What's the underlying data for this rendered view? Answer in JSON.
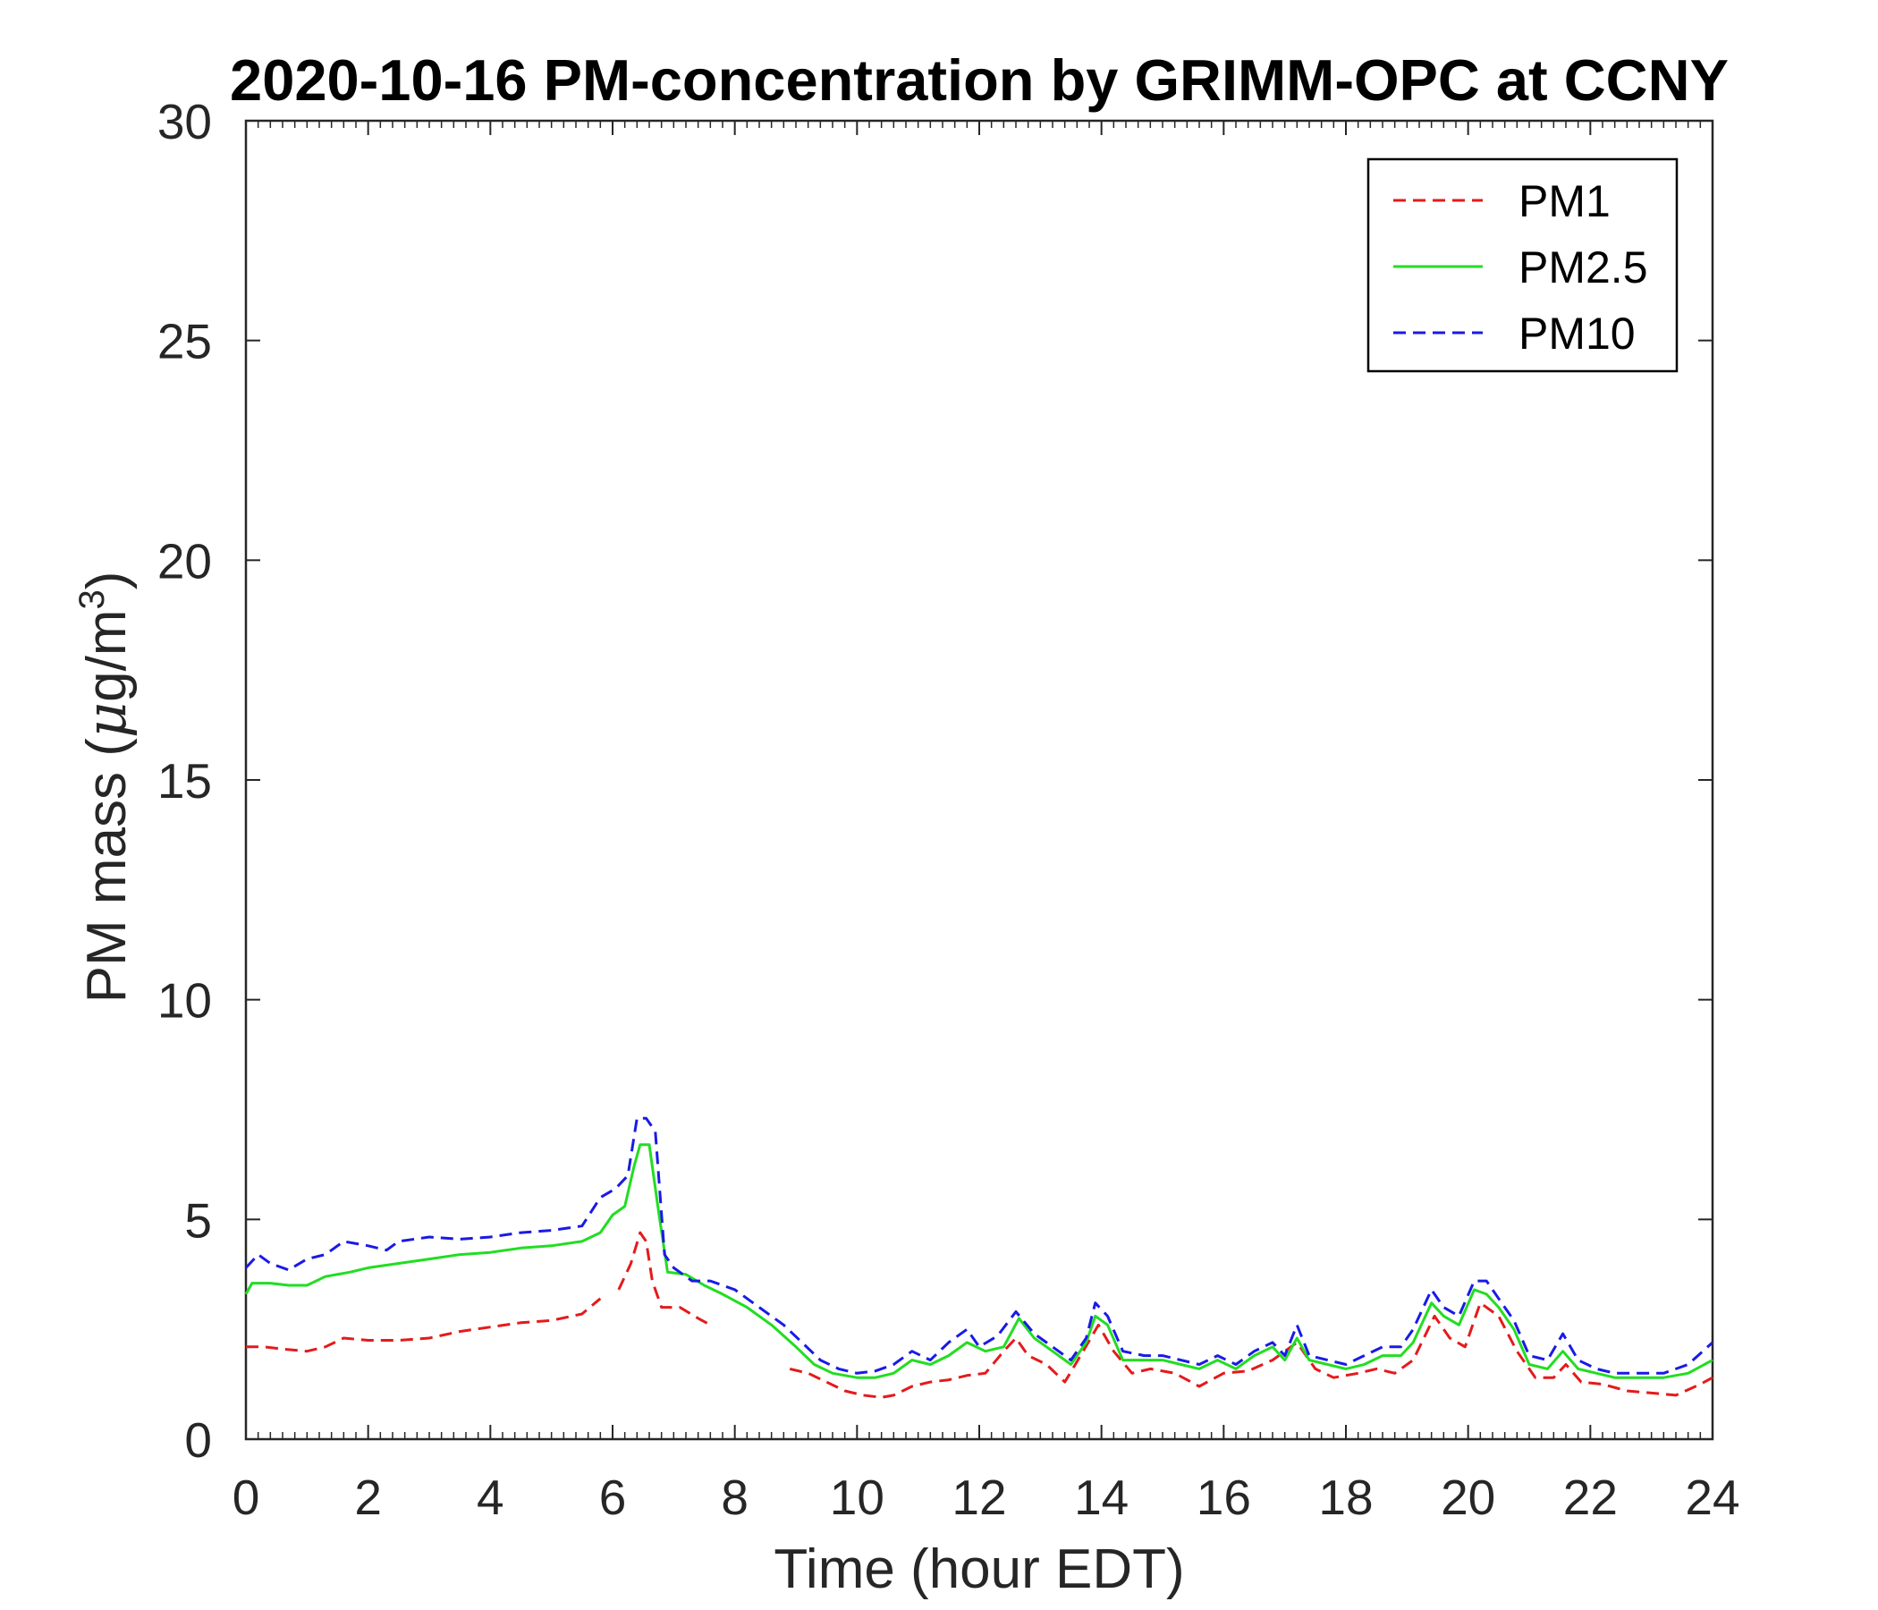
{
  "chart_data": {
    "type": "line",
    "title": "2020-10-16 PM-concentration by GRIMM-OPC at CCNY",
    "xlabel": "Time (hour EDT)",
    "ylabel": "PM mass (μg/m3)",
    "ylabel_parts": {
      "main": "PM mass (",
      "mu": "μ",
      "unit": "g/m",
      "sup": "3",
      "close": ")"
    },
    "xlim": [
      0,
      24
    ],
    "ylim": [
      0,
      30
    ],
    "xticks": [
      0,
      2,
      4,
      6,
      8,
      10,
      12,
      14,
      16,
      18,
      20,
      22,
      24
    ],
    "yticks": [
      0,
      5,
      10,
      15,
      20,
      25,
      30
    ],
    "grid": false,
    "legend_position": "top-right",
    "series": [
      {
        "name": "PM1",
        "color": "#e41a1c",
        "style": "dashed",
        "segments": [
          [
            [
              0,
              2.1
            ],
            [
              0.3,
              2.1
            ],
            [
              0.6,
              2.05
            ],
            [
              1.0,
              2.0
            ],
            [
              1.3,
              2.1
            ],
            [
              1.6,
              2.3
            ],
            [
              2.0,
              2.25
            ],
            [
              2.5,
              2.25
            ],
            [
              3.0,
              2.3
            ],
            [
              3.5,
              2.45
            ],
            [
              4.0,
              2.55
            ],
            [
              4.5,
              2.65
            ],
            [
              5.0,
              2.7
            ],
            [
              5.5,
              2.85
            ],
            [
              5.8,
              3.2
            ]
          ],
          [
            [
              6.1,
              3.4
            ],
            [
              6.3,
              4.0
            ],
            [
              6.45,
              4.7
            ],
            [
              6.55,
              4.5
            ],
            [
              6.65,
              3.6
            ],
            [
              6.8,
              3.0
            ],
            [
              7.1,
              3.0
            ],
            [
              7.4,
              2.75
            ],
            [
              7.6,
              2.6
            ]
          ],
          [
            [
              8.9,
              1.6
            ],
            [
              9.2,
              1.5
            ],
            [
              9.5,
              1.3
            ],
            [
              9.8,
              1.1
            ],
            [
              10.1,
              1.0
            ],
            [
              10.4,
              0.95
            ],
            [
              10.6,
              1.0
            ],
            [
              10.9,
              1.2
            ],
            [
              11.2,
              1.3
            ],
            [
              11.5,
              1.35
            ],
            [
              11.8,
              1.45
            ],
            [
              12.1,
              1.5
            ],
            [
              12.4,
              2.0
            ],
            [
              12.6,
              2.3
            ],
            [
              12.8,
              1.9
            ],
            [
              13.1,
              1.7
            ],
            [
              13.4,
              1.3
            ],
            [
              13.7,
              2.0
            ],
            [
              13.95,
              2.6
            ],
            [
              14.2,
              2.0
            ],
            [
              14.5,
              1.5
            ],
            [
              14.8,
              1.6
            ],
            [
              15.2,
              1.5
            ],
            [
              15.6,
              1.2
            ],
            [
              16.0,
              1.5
            ],
            [
              16.4,
              1.55
            ],
            [
              16.8,
              1.8
            ],
            [
              17.2,
              2.2
            ],
            [
              17.5,
              1.6
            ],
            [
              17.8,
              1.4
            ],
            [
              18.2,
              1.5
            ],
            [
              18.5,
              1.6
            ],
            [
              18.8,
              1.5
            ],
            [
              19.1,
              1.8
            ],
            [
              19.45,
              2.8
            ],
            [
              19.7,
              2.3
            ],
            [
              19.95,
              2.1
            ],
            [
              20.2,
              3.1
            ],
            [
              20.5,
              2.8
            ],
            [
              20.8,
              2.0
            ],
            [
              21.1,
              1.4
            ],
            [
              21.4,
              1.4
            ],
            [
              21.6,
              1.7
            ],
            [
              21.85,
              1.3
            ],
            [
              22.2,
              1.25
            ],
            [
              22.6,
              1.1
            ],
            [
              23.0,
              1.05
            ],
            [
              23.4,
              1.0
            ],
            [
              23.8,
              1.25
            ],
            [
              24.0,
              1.4
            ]
          ]
        ]
      },
      {
        "name": "PM2.5",
        "color": "#22dd22",
        "style": "solid",
        "segments": [
          [
            [
              0,
              3.3
            ],
            [
              0.1,
              3.55
            ],
            [
              0.4,
              3.55
            ],
            [
              0.7,
              3.5
            ],
            [
              1.0,
              3.5
            ],
            [
              1.3,
              3.7
            ],
            [
              1.7,
              3.8
            ],
            [
              2.0,
              3.9
            ],
            [
              2.5,
              4.0
            ],
            [
              3.0,
              4.1
            ],
            [
              3.5,
              4.2
            ],
            [
              4.0,
              4.25
            ],
            [
              4.5,
              4.35
            ],
            [
              5.0,
              4.4
            ],
            [
              5.5,
              4.5
            ],
            [
              5.8,
              4.7
            ],
            [
              6.0,
              5.1
            ],
            [
              6.2,
              5.3
            ],
            [
              6.35,
              6.2
            ],
            [
              6.45,
              6.7
            ],
            [
              6.6,
              6.7
            ],
            [
              6.75,
              5.2
            ],
            [
              6.9,
              3.8
            ],
            [
              7.2,
              3.75
            ],
            [
              7.5,
              3.5
            ],
            [
              7.8,
              3.3
            ],
            [
              8.2,
              3.0
            ],
            [
              8.6,
              2.6
            ],
            [
              9.0,
              2.1
            ],
            [
              9.3,
              1.7
            ],
            [
              9.6,
              1.5
            ],
            [
              10.0,
              1.4
            ],
            [
              10.3,
              1.4
            ],
            [
              10.6,
              1.5
            ],
            [
              10.9,
              1.8
            ],
            [
              11.2,
              1.7
            ],
            [
              11.5,
              1.9
            ],
            [
              11.8,
              2.2
            ],
            [
              12.1,
              2.0
            ],
            [
              12.4,
              2.1
            ],
            [
              12.65,
              2.75
            ],
            [
              12.9,
              2.3
            ],
            [
              13.2,
              2.0
            ],
            [
              13.5,
              1.7
            ],
            [
              13.75,
              2.2
            ],
            [
              13.9,
              2.8
            ],
            [
              14.1,
              2.6
            ],
            [
              14.35,
              1.8
            ],
            [
              14.7,
              1.8
            ],
            [
              15.0,
              1.8
            ],
            [
              15.3,
              1.7
            ],
            [
              15.6,
              1.6
            ],
            [
              15.9,
              1.8
            ],
            [
              16.2,
              1.6
            ],
            [
              16.5,
              1.9
            ],
            [
              16.8,
              2.1
            ],
            [
              17.0,
              1.8
            ],
            [
              17.2,
              2.3
            ],
            [
              17.4,
              1.8
            ],
            [
              17.7,
              1.7
            ],
            [
              18.0,
              1.6
            ],
            [
              18.3,
              1.7
            ],
            [
              18.6,
              1.9
            ],
            [
              18.9,
              1.9
            ],
            [
              19.1,
              2.2
            ],
            [
              19.4,
              3.1
            ],
            [
              19.6,
              2.8
            ],
            [
              19.85,
              2.6
            ],
            [
              20.1,
              3.4
            ],
            [
              20.3,
              3.3
            ],
            [
              20.5,
              3.0
            ],
            [
              20.75,
              2.5
            ],
            [
              21.0,
              1.7
            ],
            [
              21.3,
              1.6
            ],
            [
              21.55,
              2.0
            ],
            [
              21.8,
              1.6
            ],
            [
              22.1,
              1.5
            ],
            [
              22.4,
              1.4
            ],
            [
              22.8,
              1.4
            ],
            [
              23.2,
              1.4
            ],
            [
              23.6,
              1.5
            ],
            [
              24.0,
              1.8
            ]
          ]
        ]
      },
      {
        "name": "PM10",
        "color": "#1a1ae6",
        "style": "dashed",
        "segments": [
          [
            [
              0,
              3.9
            ],
            [
              0.2,
              4.2
            ],
            [
              0.4,
              4.0
            ],
            [
              0.7,
              3.85
            ],
            [
              1.0,
              4.1
            ],
            [
              1.3,
              4.2
            ],
            [
              1.6,
              4.5
            ],
            [
              2.0,
              4.4
            ],
            [
              2.3,
              4.3
            ],
            [
              2.5,
              4.5
            ],
            [
              3.0,
              4.6
            ],
            [
              3.5,
              4.55
            ],
            [
              4.0,
              4.6
            ],
            [
              4.5,
              4.7
            ],
            [
              5.0,
              4.75
            ],
            [
              5.5,
              4.85
            ],
            [
              5.8,
              5.5
            ],
            [
              6.05,
              5.7
            ],
            [
              6.25,
              6.0
            ],
            [
              6.4,
              7.3
            ],
            [
              6.55,
              7.3
            ],
            [
              6.7,
              7.0
            ],
            [
              6.85,
              4.2
            ],
            [
              7.0,
              3.9
            ],
            [
              7.3,
              3.6
            ],
            [
              7.6,
              3.6
            ],
            [
              8.0,
              3.4
            ],
            [
              8.4,
              3.0
            ],
            [
              8.8,
              2.6
            ],
            [
              9.1,
              2.2
            ],
            [
              9.4,
              1.8
            ],
            [
              9.7,
              1.6
            ],
            [
              10.0,
              1.5
            ],
            [
              10.3,
              1.55
            ],
            [
              10.6,
              1.7
            ],
            [
              10.9,
              2.0
            ],
            [
              11.2,
              1.8
            ],
            [
              11.5,
              2.2
            ],
            [
              11.8,
              2.5
            ],
            [
              12.0,
              2.1
            ],
            [
              12.3,
              2.35
            ],
            [
              12.6,
              2.9
            ],
            [
              12.9,
              2.4
            ],
            [
              13.2,
              2.1
            ],
            [
              13.5,
              1.8
            ],
            [
              13.75,
              2.3
            ],
            [
              13.9,
              3.1
            ],
            [
              14.1,
              2.8
            ],
            [
              14.35,
              2.0
            ],
            [
              14.7,
              1.9
            ],
            [
              15.0,
              1.9
            ],
            [
              15.3,
              1.8
            ],
            [
              15.6,
              1.7
            ],
            [
              15.9,
              1.9
            ],
            [
              16.2,
              1.7
            ],
            [
              16.5,
              2.0
            ],
            [
              16.8,
              2.2
            ],
            [
              17.0,
              1.9
            ],
            [
              17.2,
              2.6
            ],
            [
              17.4,
              1.9
            ],
            [
              17.7,
              1.8
            ],
            [
              18.0,
              1.7
            ],
            [
              18.3,
              1.9
            ],
            [
              18.6,
              2.1
            ],
            [
              18.9,
              2.1
            ],
            [
              19.1,
              2.5
            ],
            [
              19.4,
              3.4
            ],
            [
              19.6,
              3.0
            ],
            [
              19.85,
              2.8
            ],
            [
              20.1,
              3.6
            ],
            [
              20.3,
              3.6
            ],
            [
              20.5,
              3.2
            ],
            [
              20.75,
              2.7
            ],
            [
              21.0,
              1.9
            ],
            [
              21.3,
              1.8
            ],
            [
              21.55,
              2.4
            ],
            [
              21.8,
              1.8
            ],
            [
              22.1,
              1.6
            ],
            [
              22.4,
              1.5
            ],
            [
              22.8,
              1.5
            ],
            [
              23.2,
              1.5
            ],
            [
              23.6,
              1.7
            ],
            [
              24.0,
              2.2
            ]
          ]
        ]
      }
    ]
  }
}
